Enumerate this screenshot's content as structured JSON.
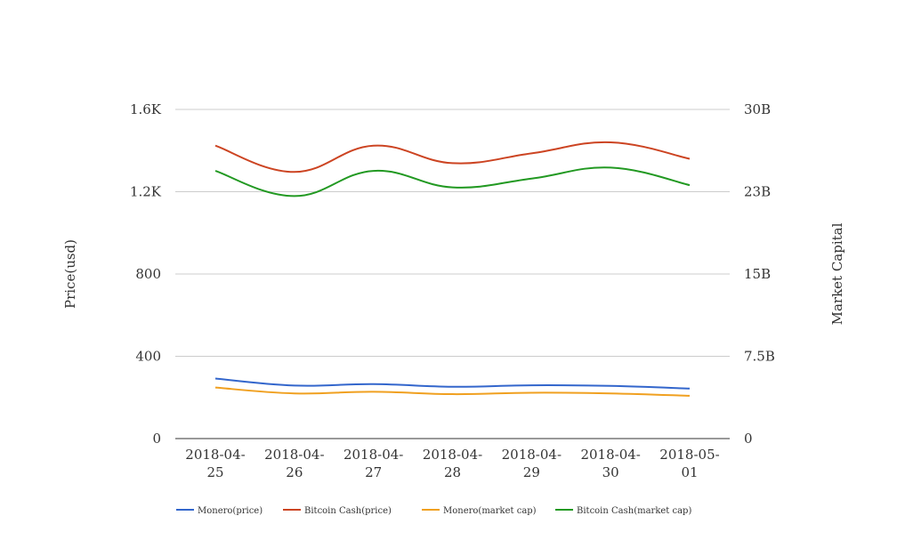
{
  "chart_data": {
    "type": "line",
    "categories": [
      [
        "2018-04-",
        "25"
      ],
      [
        "2018-04-",
        "26"
      ],
      [
        "2018-04-",
        "27"
      ],
      [
        "2018-04-",
        "28"
      ],
      [
        "2018-04-",
        "29"
      ],
      [
        "2018-04-",
        "30"
      ],
      [
        "2018-05-",
        "01"
      ]
    ],
    "ylabel": "Price(usd)",
    "y2label": "Market Capital",
    "ylim": [
      0,
      1600
    ],
    "y2lim": [
      0,
      30000000000
    ],
    "yticks": [
      0,
      400,
      800,
      1200,
      1600
    ],
    "ytick_labels": [
      "0",
      "400",
      "800",
      "1.2K",
      "1.6K"
    ],
    "y2ticks": [
      0,
      7500000000,
      15000000000,
      22500000000,
      30000000000
    ],
    "y2tick_labels": [
      "0",
      "7.5B",
      "15B",
      "23B",
      "30B"
    ],
    "grid": true,
    "legend_position": "bottom",
    "series": [
      {
        "name": "Monero(price)",
        "axis": "left",
        "color": "#3366cc",
        "values": [
          292,
          258,
          265,
          252,
          259,
          256,
          243
        ]
      },
      {
        "name": "Bitcoin Cash(price)",
        "axis": "right",
        "color": "#cc4422",
        "values": [
          26700000000,
          24300000000,
          26700000000,
          25100000000,
          26000000000,
          27000000000,
          25500000000
        ]
      },
      {
        "name": "Monero(market cap)",
        "axis": "right",
        "color": "#f0a020",
        "values": [
          4650000000,
          4120000000,
          4270000000,
          4050000000,
          4180000000,
          4120000000,
          3900000000
        ]
      },
      {
        "name": "Bitcoin Cash(market cap)",
        "axis": "right",
        "color": "#229922",
        "values": [
          24400000000,
          22100000000,
          24400000000,
          22900000000,
          23700000000,
          24700000000,
          23100000000
        ]
      }
    ]
  }
}
